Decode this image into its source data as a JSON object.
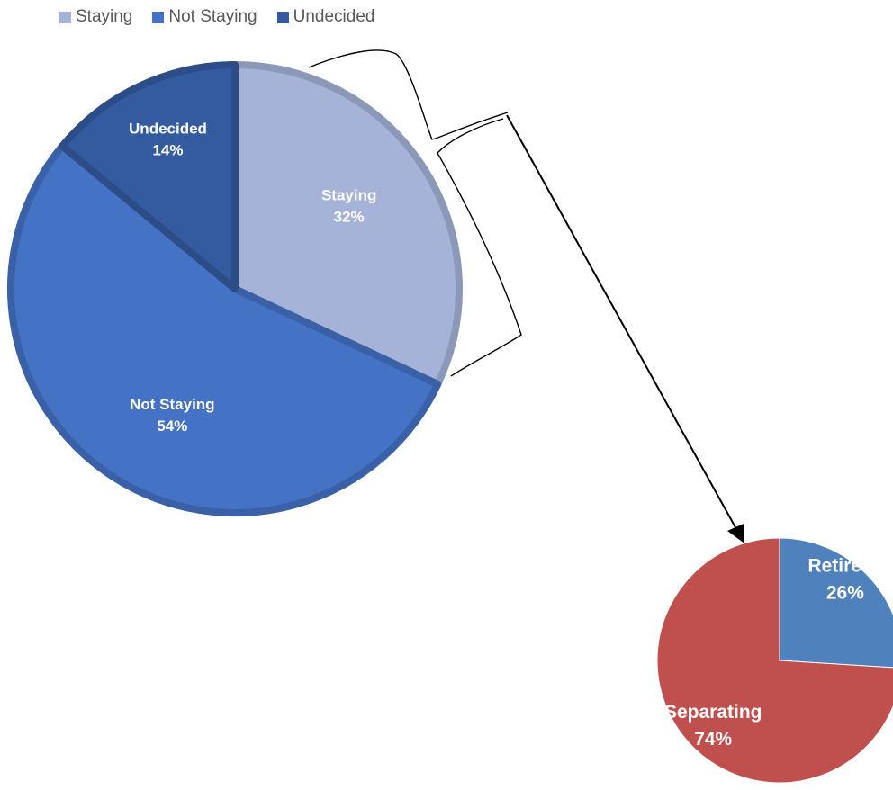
{
  "chart_data": [
    {
      "type": "pie",
      "legend_position": "top-left",
      "categories": [
        "Staying",
        "Not Staying",
        "Undecided"
      ],
      "values": [
        32,
        54,
        14
      ],
      "data_labels": [
        {
          "name": "Staying",
          "value": "32%"
        },
        {
          "name": "Not Staying",
          "value": "54%"
        },
        {
          "name": "Undecided",
          "value": "14%"
        }
      ],
      "colors": [
        "#a5b3d9",
        "#4472c4",
        "#345aa0"
      ],
      "legend": [
        "Staying",
        "Not Staying",
        "Undecided"
      ]
    },
    {
      "type": "pie",
      "categories": [
        "Retirees",
        "Separating"
      ],
      "values": [
        26,
        74
      ],
      "data_labels": [
        {
          "name": "Retirees",
          "value": "26%"
        },
        {
          "name": "Separating",
          "value": "74%"
        }
      ],
      "colors": [
        "#4f81bd",
        "#c0504d"
      ],
      "annotation": "bracket-and-arrow linking Staying slice to breakdown pie"
    }
  ]
}
